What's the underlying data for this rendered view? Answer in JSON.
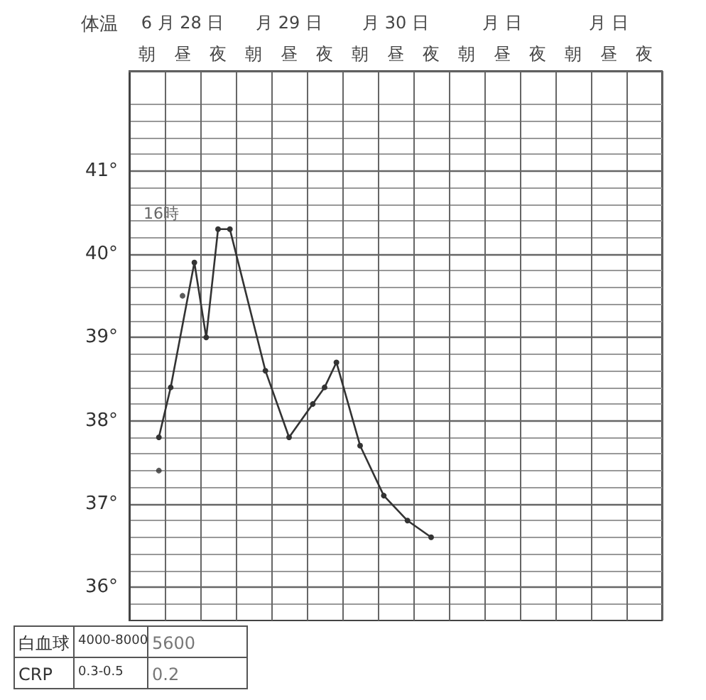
{
  "chart_data": {
    "type": "line",
    "ylabel": "体温",
    "categories": [
      null,
      "朝",
      null,
      null,
      "昼",
      null,
      null,
      "夜",
      null,
      null,
      "朝",
      null,
      null,
      "昼",
      null,
      null,
      "夜",
      null,
      null,
      "朝",
      null,
      null,
      "昼",
      null,
      null,
      "夜",
      null,
      null,
      "朝",
      null,
      null,
      "昼",
      null,
      null,
      "夜",
      null,
      null,
      "朝",
      null,
      null,
      "昼",
      null,
      null,
      "夜",
      null
    ],
    "ylim": [
      35.6,
      42.2
    ],
    "yticks": [
      {
        "value": 36,
        "label": "36°"
      },
      {
        "value": 37,
        "label": "37°"
      },
      {
        "value": 38,
        "label": "38°"
      },
      {
        "value": 39,
        "label": "39°"
      },
      {
        "value": 40,
        "label": "40°"
      },
      {
        "value": 41,
        "label": "41°"
      }
    ],
    "grid": true,
    "marker": "circle",
    "line_style": "solid",
    "series": [
      {
        "type": "line",
        "color": "#333333",
        "values": [
          null,
          null,
          37.8,
          38.4,
          null,
          39.9,
          39.0,
          40.3,
          40.3,
          null,
          null,
          38.6,
          null,
          37.8,
          null,
          38.2,
          38.4,
          38.7,
          null,
          37.7,
          null,
          37.1,
          null,
          36.8,
          null,
          36.6,
          null,
          null,
          null,
          null,
          null,
          null,
          null,
          null,
          null,
          null,
          null,
          null,
          null,
          null,
          null,
          null,
          null,
          null,
          null
        ]
      },
      {
        "type": "scatter",
        "color": "#333333",
        "values": [
          null,
          null,
          37.4,
          null,
          39.5,
          null,
          null,
          null,
          null,
          null,
          null,
          null,
          null,
          null,
          null,
          null,
          null,
          null,
          null,
          null,
          null,
          null,
          null,
          null,
          null,
          null,
          null,
          null,
          null,
          null,
          null,
          null,
          null,
          null,
          null,
          null,
          null,
          null,
          null,
          null,
          null,
          null,
          null,
          null,
          null
        ]
      }
    ],
    "annotations": [
      "16時",
      "6 月 28 日",
      "月 29 日",
      "月 30 日",
      "月 日",
      "月 日",
      "白血球",
      "4000-8000",
      "5600",
      "CRP",
      "0.3-0.5",
      "0.2"
    ]
  }
}
